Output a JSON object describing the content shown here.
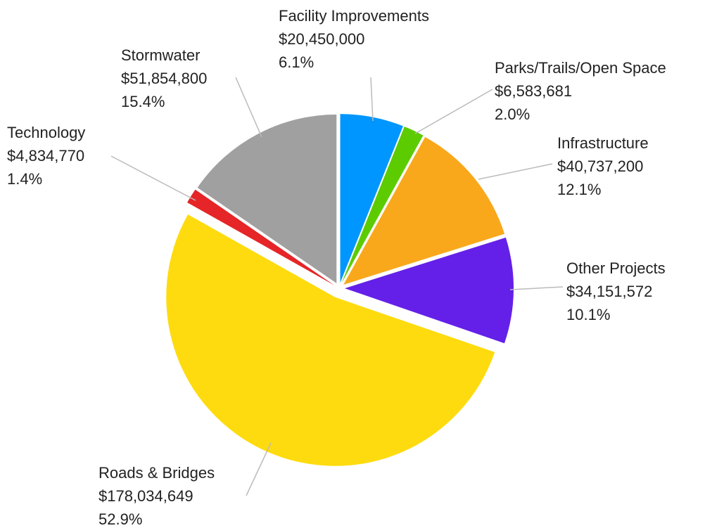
{
  "chart_data": {
    "type": "pie",
    "categories": [
      "Facility Improvements",
      "Parks/Trails/Open Space",
      "Infrastructure",
      "Other Projects",
      "Roads & Bridges",
      "Technology",
      "Stormwater"
    ],
    "values": [
      20450000,
      6583681,
      40737200,
      34151572,
      178034649,
      4834770,
      51854800
    ],
    "value_labels": [
      "$20,450,000",
      "$6,583,681",
      "$40,737,200",
      "$34,151,572",
      "$178,034,649",
      "$4,834,770",
      "$51,854,800"
    ],
    "percentages": [
      6.1,
      2.0,
      12.1,
      10.1,
      52.9,
      1.4,
      15.4
    ],
    "percentage_labels": [
      "6.1%",
      "2.0%",
      "12.1%",
      "10.1%",
      "52.9%",
      "1.4%",
      "15.4%"
    ],
    "colors": [
      "#0096ff",
      "#5ccc00",
      "#f9a81b",
      "#6420e8",
      "#fedb0f",
      "#e52527",
      "#a0a0a0"
    ]
  }
}
